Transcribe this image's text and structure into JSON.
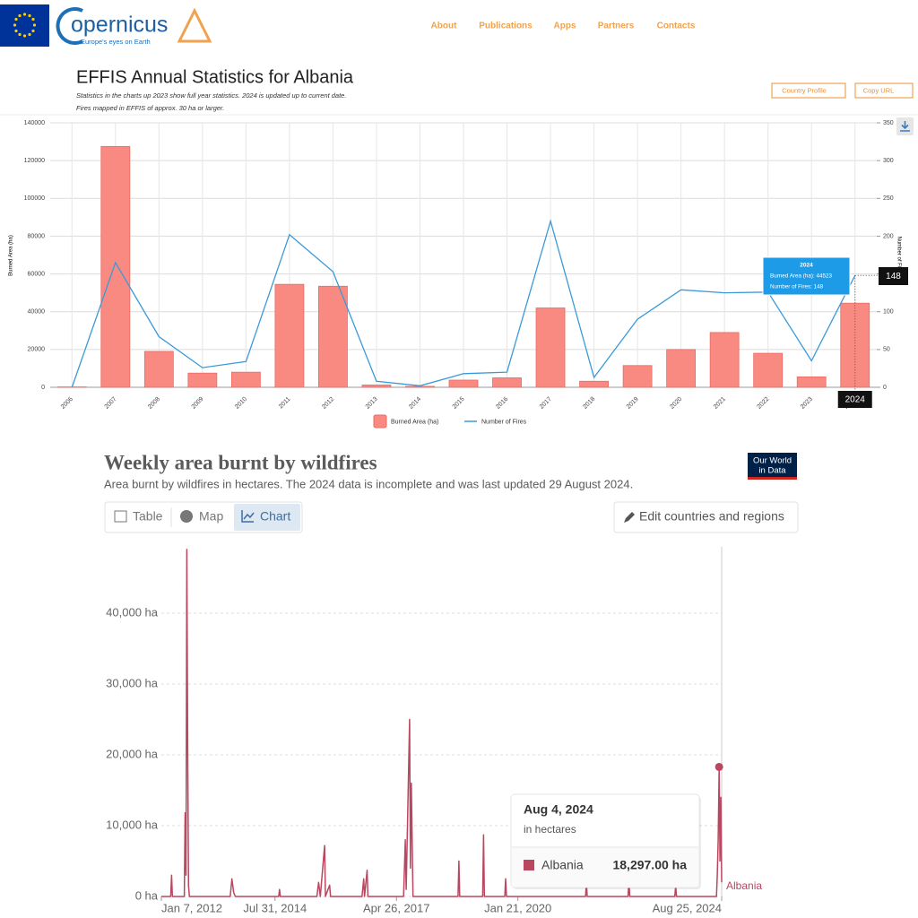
{
  "header": {
    "logo": "opernicus",
    "logo_tagline": "Europe's eyes on Earth",
    "nav": [
      "About",
      "Publications",
      "Apps",
      "Partners",
      "Contacts"
    ]
  },
  "effis": {
    "notes": [
      "Statistics in the charts up 2023 show full year statistics. 2024 is updated up to current date.",
      "Fires mapped in EFFIS of approx. 30 ha or larger."
    ],
    "buttons": [
      "Country Profile",
      "Copy URL"
    ]
  },
  "owid": {
    "tabs": [
      "Table",
      "Map",
      "Chart"
    ],
    "edit_button": "Edit countries and regions",
    "logo": [
      "Our World",
      "in Data"
    ]
  },
  "chart_data": [
    {
      "type": "bar",
      "title": "EFFIS Annual Statistics for Albania",
      "categories": [
        "2006",
        "2007",
        "2008",
        "2009",
        "2010",
        "2011",
        "2012",
        "2013",
        "2014",
        "2015",
        "2016",
        "2017",
        "2018",
        "2019",
        "2020",
        "2021",
        "2022",
        "2023",
        "2024"
      ],
      "series": [
        {
          "name": "Burned Area (ha)",
          "type": "bar",
          "color": "#f88a82",
          "values": [
            200,
            127500,
            19000,
            7500,
            8000,
            54500,
            53500,
            1200,
            500,
            3800,
            5000,
            42000,
            3200,
            11500,
            20000,
            29000,
            18000,
            5500,
            44523
          ]
        },
        {
          "name": "Number of Fires",
          "type": "line",
          "axis": "y2",
          "color": "#3a9ad9",
          "values": [
            0,
            165,
            67,
            26,
            34,
            202,
            153,
            8,
            2,
            18,
            20,
            220,
            13,
            90,
            129,
            125,
            126,
            35,
            148
          ]
        }
      ],
      "y_label": "Burned Area (ha)",
      "y2_label": "Number of Fires",
      "ylim": [
        0,
        140000
      ],
      "yticks": [
        0,
        20000,
        40000,
        60000,
        80000,
        100000,
        120000,
        140000
      ],
      "y2lim": [
        0,
        350
      ],
      "y2ticks": [
        0,
        50,
        100,
        150,
        200,
        250,
        300,
        350
      ],
      "grid": true,
      "legend": "bottom",
      "tooltip": {
        "lines": [
          "Burned Area (ha): 44523",
          "Number of Fires: 148"
        ]
      }
    },
    {
      "type": "line",
      "title": "Weekly area burnt by wildfires",
      "subtitle": "Area burnt by wildfires in hectares. The 2024 data is incomplete and was last updated 29 August 2024.",
      "x": [
        "2012-01-07",
        "2012-03-24",
        "2012-03-31",
        "2012-04-07",
        "2012-07-14",
        "2012-07-21",
        "2012-07-28",
        "2012-08-04",
        "2012-08-11",
        "2012-08-18",
        "2012-08-25",
        "2013-07-27",
        "2013-08-10",
        "2013-08-24",
        "2013-09-07",
        "2014-08-30",
        "2014-09-06",
        "2014-09-13",
        "2015-07-11",
        "2015-07-25",
        "2015-08-08",
        "2015-09-12",
        "2015-09-19",
        "2015-10-24",
        "2015-10-31",
        "2016-07-16",
        "2016-07-30",
        "2016-08-06",
        "2016-08-27",
        "2016-09-03",
        "2017-06-24",
        "2017-07-08",
        "2017-07-15",
        "2017-08-12",
        "2017-08-19",
        "2017-08-26",
        "2017-09-09",
        "2018-09-15",
        "2018-09-22",
        "2018-09-29",
        "2019-04-06",
        "2019-04-13",
        "2019-04-20",
        "2019-10-05",
        "2019-10-12",
        "2019-10-19",
        "2021-07-31",
        "2021-08-07",
        "2021-08-14",
        "2022-07-16",
        "2022-07-23",
        "2022-07-30",
        "2023-08-05",
        "2023-08-12",
        "2023-08-19",
        "2024-07-13",
        "2024-07-20",
        "2024-07-27",
        "2024-08-04",
        "2024-08-11",
        "2024-08-18",
        "2024-08-25"
      ],
      "series": [
        {
          "name": "Albania",
          "color": "#b8475f",
          "values": [
            0,
            0,
            3000,
            0,
            0,
            11800,
            3000,
            49000,
            20000,
            1500,
            0,
            0,
            2500,
            600,
            0,
            0,
            1000,
            0,
            0,
            2000,
            0,
            7200,
            0,
            1600,
            0,
            0,
            2500,
            0,
            3700,
            0,
            0,
            8000,
            1000,
            25000,
            4000,
            16000,
            0,
            0,
            5000,
            0,
            0,
            8700,
            0,
            0,
            2500,
            0,
            0,
            2000,
            0,
            0,
            2200,
            0,
            0,
            1500,
            0,
            0,
            3000,
            8000,
            18297,
            5000,
            14000,
            2000
          ]
        }
      ],
      "xlim": [
        "2012-01-07",
        "2024-08-25"
      ],
      "xticks": [
        {
          "value": "2012-01-07",
          "label": "Jan 7, 2012"
        },
        {
          "value": "2014-07-31",
          "label": "Jul 31, 2014"
        },
        {
          "value": "2017-04-26",
          "label": "Apr 26, 2017"
        },
        {
          "value": "2020-01-21",
          "label": "Jan 21, 2020"
        },
        {
          "value": "2024-08-25",
          "label": "Aug 25, 2024"
        }
      ],
      "ylim": [
        0,
        49500
      ],
      "yticks": [
        {
          "value": 0,
          "label": "0 ha"
        },
        {
          "value": 10000,
          "label": "10,000 ha"
        },
        {
          "value": 20000,
          "label": "20,000 ha"
        },
        {
          "value": 30000,
          "label": "30,000 ha"
        },
        {
          "value": 40000,
          "label": "40,000 ha"
        }
      ],
      "grid": true,
      "tooltip": {
        "title": "Aug 4, 2024",
        "unit": "in hectares",
        "value_label": "18,297.00 ha"
      }
    }
  ]
}
